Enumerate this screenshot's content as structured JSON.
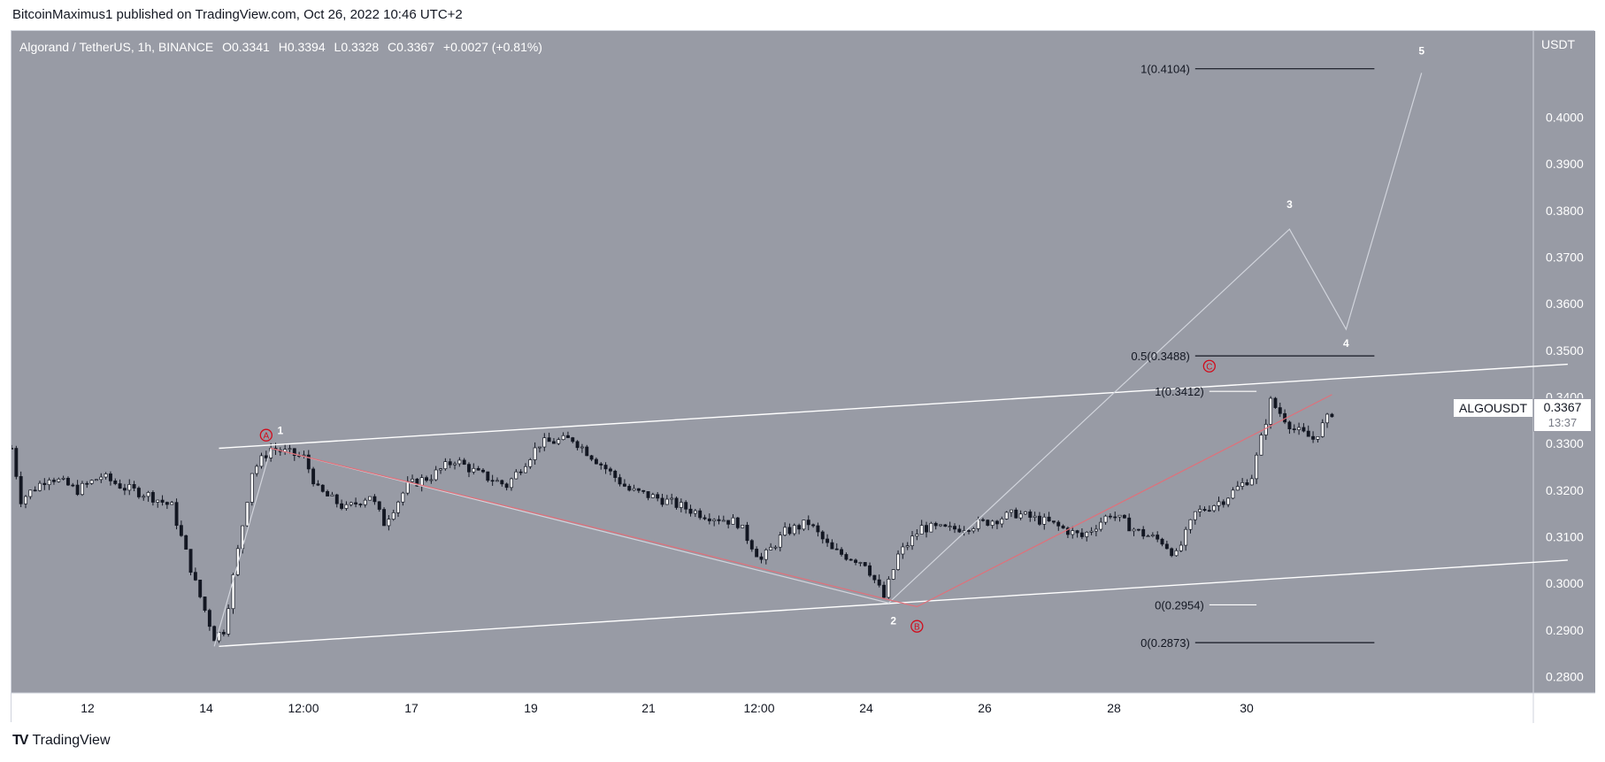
{
  "publish_line": "BitcoinMaximus1 published on TradingView.com, Oct 26, 2022 10:46 UTC+2",
  "footer_logo_text": "TradingView",
  "header": {
    "symbol": "Algorand / TetherUS, 1h, BINANCE",
    "open_label": "O",
    "open": "0.3341",
    "high_label": "H",
    "high": "0.3394",
    "low_label": "L",
    "low": "0.3328",
    "close_label": "C",
    "close": "0.3367",
    "change": "+0.0027 (+0.81%)"
  },
  "price_axis": {
    "title": "USDT"
  },
  "last_price": {
    "symbol": "ALGOUSDT",
    "price": "0.3367",
    "countdown": "13:37"
  },
  "colors": {
    "plot_bg": "#989ba5",
    "candle": "#131722",
    "channel": "#ffffff",
    "projection": "#d1d4dc",
    "abc_path": "#e0707a",
    "abc_label": "#d10c1c",
    "fib_line": "#131722"
  },
  "chart_data": {
    "type": "candlestick",
    "x_tick_labels": [
      "12",
      "14",
      "12:00",
      "17",
      "19",
      "21",
      "12:00",
      "24",
      "26",
      "28",
      "30"
    ],
    "y_ticks": [
      0.28,
      0.29,
      0.3,
      0.31,
      0.32,
      0.33,
      0.34,
      0.35,
      0.36,
      0.37,
      0.38,
      0.39,
      0.4
    ],
    "y_tick_labels": [
      "0.2800",
      "0.2900",
      "0.3000",
      "0.3100",
      "0.3200",
      "0.3300",
      "0.3400",
      "0.3500",
      "0.3600",
      "0.3700",
      "0.3800",
      "0.3900",
      "0.4000"
    ],
    "ylim": [
      0.2765,
      0.4185
    ],
    "price_path": [
      [
        0,
        0.329
      ],
      [
        2,
        0.318
      ],
      [
        8,
        0.323
      ],
      [
        14,
        0.32
      ],
      [
        19,
        0.323
      ],
      [
        24,
        0.3205
      ],
      [
        29,
        0.319
      ],
      [
        34,
        0.3165
      ],
      [
        39,
        0.3
      ],
      [
        43,
        0.2885
      ],
      [
        45,
        0.29
      ],
      [
        51,
        0.324
      ],
      [
        55,
        0.329
      ],
      [
        62,
        0.327
      ],
      [
        65,
        0.32
      ],
      [
        71,
        0.316
      ],
      [
        76,
        0.319
      ],
      [
        79,
        0.313
      ],
      [
        84,
        0.321
      ],
      [
        89,
        0.323
      ],
      [
        94,
        0.3265
      ],
      [
        99,
        0.3235
      ],
      [
        105,
        0.321
      ],
      [
        112,
        0.33
      ],
      [
        119,
        0.331
      ],
      [
        124,
        0.3265
      ],
      [
        131,
        0.32
      ],
      [
        138,
        0.318
      ],
      [
        146,
        0.315
      ],
      [
        154,
        0.313
      ],
      [
        159,
        0.305
      ],
      [
        164,
        0.311
      ],
      [
        169,
        0.313
      ],
      [
        174,
        0.307
      ],
      [
        181,
        0.3045
      ],
      [
        185,
        0.297
      ],
      [
        188,
        0.306
      ],
      [
        193,
        0.312
      ],
      [
        199,
        0.3115
      ],
      [
        206,
        0.313
      ],
      [
        213,
        0.315
      ],
      [
        220,
        0.313
      ],
      [
        227,
        0.31
      ],
      [
        233,
        0.315
      ],
      [
        239,
        0.311
      ],
      [
        244,
        0.309
      ],
      [
        247,
        0.306
      ],
      [
        251,
        0.315
      ],
      [
        257,
        0.318
      ],
      [
        263,
        0.323
      ],
      [
        267,
        0.339
      ],
      [
        272,
        0.333
      ],
      [
        276,
        0.331
      ],
      [
        280,
        0.3367
      ]
    ],
    "channel": {
      "upper": [
        [
          44,
          0.329
        ],
        [
          330,
          0.347
        ]
      ],
      "lower": [
        [
          44,
          0.2865
        ],
        [
          330,
          0.305
        ]
      ]
    },
    "abc_path": [
      [
        55,
        0.329
      ],
      [
        192,
        0.295
      ],
      [
        280,
        0.3405
      ]
    ],
    "projection_path": [
      [
        43,
        0.2865
      ],
      [
        55,
        0.329
      ],
      [
        186,
        0.2958
      ],
      [
        271,
        0.376
      ],
      [
        283,
        0.3545
      ],
      [
        299,
        0.4095
      ]
    ],
    "fib_levels": [
      {
        "label": "1(0.4104)",
        "price": 0.4104,
        "x_start": 251,
        "x_end": 289,
        "color": "#131722"
      },
      {
        "label": "0.5(0.3488)",
        "price": 0.3488,
        "x_start": 251,
        "x_end": 289,
        "color": "#131722"
      },
      {
        "label": "1(0.3412)",
        "price": 0.3412,
        "x_start": 254,
        "x_end": 264,
        "color": "#ffffff"
      },
      {
        "label": "0(0.2954)",
        "price": 0.2954,
        "x_start": 254,
        "x_end": 264,
        "color": "#ffffff"
      },
      {
        "label": "0(0.2873)",
        "price": 0.2873,
        "x_start": 251,
        "x_end": 289,
        "color": "#131722"
      }
    ],
    "wave_labels": [
      {
        "text": "1",
        "x": 57,
        "price": 0.332,
        "color": "#ffffff"
      },
      {
        "text": "2",
        "x": 187,
        "price": 0.2912,
        "color": "#ffffff"
      },
      {
        "text": "3",
        "x": 271,
        "price": 0.3805,
        "color": "#ffffff"
      },
      {
        "text": "4",
        "x": 283,
        "price": 0.3507,
        "color": "#ffffff"
      },
      {
        "text": "5",
        "x": 299,
        "price": 0.4135,
        "color": "#ffffff"
      }
    ],
    "abc_labels": [
      {
        "text": "A",
        "x": 54,
        "price": 0.3318
      },
      {
        "text": "B",
        "x": 192,
        "price": 0.2908
      },
      {
        "text": "C",
        "x": 254,
        "price": 0.3466
      }
    ]
  }
}
